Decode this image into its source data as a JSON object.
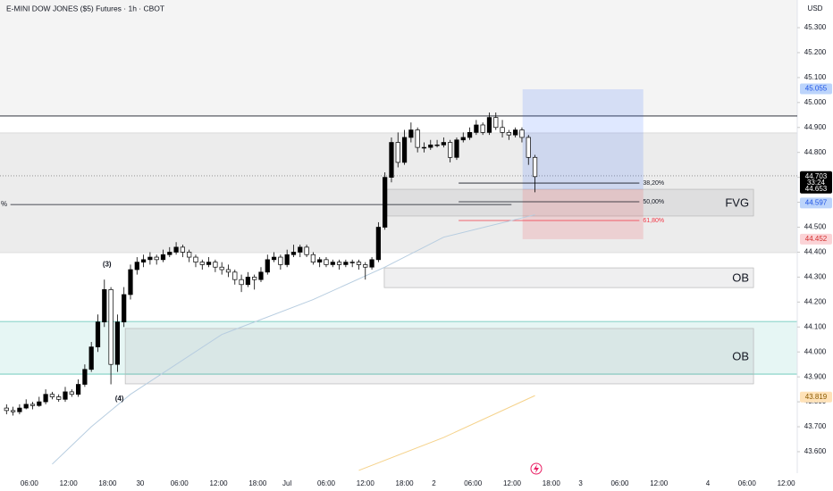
{
  "chart_data": {
    "type": "candlestick",
    "title": "E-MINI DOW JONES ($5) Futures · 1h · CBOT",
    "currency": "USD",
    "up_color": "#000000",
    "down_color": "#ffffff",
    "wick_color": "#000000",
    "x": [
      1,
      2,
      3,
      4,
      5,
      6,
      7,
      8,
      9,
      10,
      11,
      12,
      13,
      14,
      15,
      16,
      17,
      18,
      19,
      20,
      21,
      22,
      23,
      24,
      25,
      26,
      27,
      28,
      29,
      30,
      31,
      32,
      33,
      34,
      35,
      36,
      37,
      38,
      39,
      40,
      41,
      42,
      43,
      44,
      45,
      46,
      47,
      48,
      49,
      50,
      51,
      52,
      53,
      54,
      55,
      56,
      57,
      58,
      59,
      60,
      61,
      62,
      63,
      64,
      65,
      66,
      67,
      68,
      69,
      70,
      71,
      72,
      73,
      74,
      75,
      76,
      77,
      78,
      79,
      80,
      81,
      82
    ],
    "ohlc": [
      [
        43.775,
        43.79,
        43.75,
        43.765
      ],
      [
        43.765,
        43.78,
        43.745,
        43.76
      ],
      [
        43.76,
        43.79,
        43.75,
        43.775
      ],
      [
        43.775,
        43.81,
        43.77,
        43.79
      ],
      [
        43.79,
        43.8,
        43.77,
        43.785
      ],
      [
        43.785,
        43.82,
        43.78,
        43.8
      ],
      [
        43.8,
        43.85,
        43.79,
        43.83
      ],
      [
        43.83,
        43.84,
        43.81,
        43.82
      ],
      [
        43.82,
        43.83,
        43.8,
        43.81
      ],
      [
        43.81,
        43.86,
        43.8,
        43.84
      ],
      [
        43.84,
        43.85,
        43.82,
        43.83
      ],
      [
        43.83,
        43.89,
        43.82,
        43.87
      ],
      [
        43.87,
        43.95,
        43.86,
        43.93
      ],
      [
        43.93,
        44.04,
        43.92,
        44.02
      ],
      [
        44.02,
        44.15,
        44.0,
        44.12
      ],
      [
        44.12,
        44.29,
        44.1,
        44.25
      ],
      [
        44.25,
        44.26,
        43.87,
        43.95
      ],
      [
        43.95,
        44.15,
        43.92,
        44.12
      ],
      [
        44.12,
        44.26,
        44.1,
        44.23
      ],
      [
        44.23,
        44.35,
        44.21,
        44.33
      ],
      [
        44.33,
        44.38,
        44.31,
        44.36
      ],
      [
        44.36,
        44.39,
        44.34,
        44.37
      ],
      [
        44.37,
        44.4,
        44.35,
        44.38
      ],
      [
        44.38,
        44.39,
        44.35,
        44.37
      ],
      [
        44.37,
        44.41,
        44.36,
        44.39
      ],
      [
        44.39,
        44.42,
        44.38,
        44.4
      ],
      [
        44.4,
        44.44,
        44.39,
        44.42
      ],
      [
        44.42,
        44.43,
        44.38,
        44.4
      ],
      [
        44.4,
        44.41,
        44.36,
        44.38
      ],
      [
        44.38,
        44.39,
        44.34,
        44.36
      ],
      [
        44.36,
        44.37,
        44.33,
        44.35
      ],
      [
        44.35,
        44.38,
        44.34,
        44.36
      ],
      [
        44.36,
        44.37,
        44.32,
        44.34
      ],
      [
        44.34,
        44.36,
        44.31,
        44.33
      ],
      [
        44.33,
        44.35,
        44.3,
        44.32
      ],
      [
        44.32,
        44.33,
        44.27,
        44.29
      ],
      [
        44.29,
        44.31,
        44.24,
        44.27
      ],
      [
        44.27,
        44.32,
        44.26,
        44.3
      ],
      [
        44.3,
        44.31,
        44.25,
        44.29
      ],
      [
        44.29,
        44.34,
        44.28,
        44.32
      ],
      [
        44.32,
        44.39,
        44.31,
        44.37
      ],
      [
        44.37,
        44.4,
        44.36,
        44.38
      ],
      [
        44.38,
        44.39,
        44.33,
        44.35
      ],
      [
        44.35,
        44.41,
        44.34,
        44.39
      ],
      [
        44.39,
        44.43,
        44.38,
        44.4
      ],
      [
        44.4,
        44.43,
        44.38,
        44.42
      ],
      [
        44.42,
        44.43,
        44.38,
        44.39
      ],
      [
        44.39,
        44.4,
        44.35,
        44.36
      ],
      [
        44.36,
        44.38,
        44.34,
        44.37
      ],
      [
        44.37,
        44.38,
        44.34,
        44.35
      ],
      [
        44.35,
        44.37,
        44.34,
        44.36
      ],
      [
        44.36,
        44.37,
        44.33,
        44.35
      ],
      [
        44.35,
        44.37,
        44.34,
        44.36
      ],
      [
        44.36,
        44.37,
        44.34,
        44.36
      ],
      [
        44.36,
        44.37,
        44.33,
        44.35
      ],
      [
        44.35,
        44.36,
        44.29,
        44.34
      ],
      [
        44.34,
        44.38,
        44.33,
        44.37
      ],
      [
        44.37,
        44.52,
        44.36,
        44.5
      ],
      [
        44.5,
        44.72,
        44.49,
        44.7
      ],
      [
        44.7,
        44.86,
        44.68,
        44.84
      ],
      [
        44.84,
        44.88,
        44.74,
        44.76
      ],
      [
        44.76,
        44.89,
        44.75,
        44.86
      ],
      [
        44.86,
        44.92,
        44.84,
        44.89
      ],
      [
        44.89,
        44.9,
        44.8,
        44.82
      ],
      [
        44.82,
        44.84,
        44.8,
        44.82
      ],
      [
        44.82,
        44.85,
        44.81,
        44.83
      ],
      [
        44.83,
        44.85,
        44.82,
        44.83
      ],
      [
        44.83,
        44.86,
        44.82,
        44.84
      ],
      [
        44.84,
        44.85,
        44.76,
        44.78
      ],
      [
        44.78,
        44.86,
        44.77,
        44.85
      ],
      [
        44.85,
        44.88,
        44.84,
        44.86
      ],
      [
        44.86,
        44.9,
        44.85,
        44.88
      ],
      [
        44.88,
        44.93,
        44.87,
        44.91
      ],
      [
        44.91,
        44.92,
        44.87,
        44.88
      ],
      [
        44.88,
        44.96,
        44.87,
        44.94
      ],
      [
        44.94,
        44.96,
        44.89,
        44.9
      ],
      [
        44.9,
        44.93,
        44.86,
        44.88
      ],
      [
        44.88,
        44.89,
        44.85,
        44.87
      ],
      [
        44.87,
        44.9,
        44.86,
        44.89
      ],
      [
        44.89,
        44.9,
        44.84,
        44.86
      ],
      [
        44.86,
        44.87,
        44.75,
        44.78
      ],
      [
        44.78,
        44.79,
        44.64,
        44.703
      ]
    ],
    "xlim": [
      0,
      122.2
    ],
    "ylim": [
      43.514,
      45.411
    ],
    "xticks": [
      {
        "value": 4.5,
        "label": "06:00"
      },
      {
        "value": 10.5,
        "label": "12:00"
      },
      {
        "value": 16.5,
        "label": "18:00"
      },
      {
        "value": 21.5,
        "label": "30"
      },
      {
        "value": 27.5,
        "label": "06:00"
      },
      {
        "value": 33.5,
        "label": "12:00"
      },
      {
        "value": 39.5,
        "label": "18:00"
      },
      {
        "value": 44,
        "label": "Jul"
      },
      {
        "value": 50,
        "label": "06:00"
      },
      {
        "value": 56,
        "label": "12:00"
      },
      {
        "value": 62,
        "label": "18:00"
      },
      {
        "value": 66.5,
        "label": "2"
      },
      {
        "value": 72.5,
        "label": "06:00"
      },
      {
        "value": 78.5,
        "label": "12:00"
      },
      {
        "value": 84.5,
        "label": "18:00"
      },
      {
        "value": 89,
        "label": "3"
      },
      {
        "value": 95,
        "label": "06:00"
      },
      {
        "value": 101,
        "label": "12:00"
      },
      {
        "value": 108.5,
        "label": "4"
      },
      {
        "value": 114.5,
        "label": "06:00"
      },
      {
        "value": 120.5,
        "label": "12:00"
      }
    ],
    "yticks": [
      {
        "value": 43.6,
        "label": "43.600"
      },
      {
        "value": 43.7,
        "label": "43.700"
      },
      {
        "value": 43.8,
        "label": "43.800"
      },
      {
        "value": 43.9,
        "label": "43.900"
      },
      {
        "value": 44.0,
        "label": "44.000"
      },
      {
        "value": 44.1,
        "label": "44.100"
      },
      {
        "value": 44.2,
        "label": "44.200"
      },
      {
        "value": 44.3,
        "label": "44.300"
      },
      {
        "value": 44.4,
        "label": "44.400"
      },
      {
        "value": 44.5,
        "label": "44.500"
      },
      {
        "value": 44.6,
        "label": "44.600"
      },
      {
        "value": 44.7,
        "label": "44.700"
      },
      {
        "value": 44.8,
        "label": "44.800"
      },
      {
        "value": 44.9,
        "label": "44.900"
      },
      {
        "value": 45.0,
        "label": "45.000"
      },
      {
        "value": 45.1,
        "label": "45.100"
      },
      {
        "value": 45.2,
        "label": "45.200"
      },
      {
        "value": 45.3,
        "label": "45.300"
      }
    ],
    "lines": [
      {
        "color": "#b7cde0",
        "x": [
          8,
          14,
          20,
          34,
          48,
          59,
          68,
          82
        ],
        "values": [
          43.55,
          43.7,
          43.83,
          44.07,
          44.21,
          44.34,
          44.46,
          44.55
        ]
      },
      {
        "color": "#f5d28a",
        "x": [
          55,
          68,
          82
        ],
        "values": [
          43.525,
          43.657,
          43.825
        ]
      }
    ],
    "zones": [
      {
        "range": [
          44.946,
          45.411
        ],
        "color": "#f4f4f4",
        "border": "none"
      },
      {
        "range": [
          44.398,
          44.878
        ],
        "color": "#ececec",
        "border": "#d6d6d6"
      },
      {
        "range": [
          43.911,
          44.122
        ],
        "color": "#e6f6f4",
        "border": "#5fc4b4"
      }
    ],
    "levels": [
      {
        "price": 44.946,
        "color": "#131722",
        "dash": "none"
      },
      {
        "price": 44.706,
        "color": "#888888",
        "dash": "1,2"
      }
    ],
    "boxes": [
      {
        "x": [
          59.3,
          115.5
        ],
        "range": [
          44.545,
          44.652
        ],
        "label": "FVG"
      },
      {
        "x": [
          58.9,
          115.5
        ],
        "range": [
          44.258,
          44.337
        ],
        "label": "OB"
      },
      {
        "x": [
          19.2,
          115.5
        ],
        "range": [
          43.872,
          44.094
        ],
        "label": "OB"
      }
    ],
    "ray": {
      "x": [
        1.6,
        78.4
      ],
      "price": 44.591,
      "label": "%"
    },
    "position": {
      "x": [
        80.1,
        98.6
      ],
      "target": 45.053,
      "entry": 44.652,
      "stop": 44.452
    },
    "fib": {
      "x": [
        70.3,
        98
      ],
      "levels": [
        {
          "price": 44.677,
          "label": "38,20%",
          "color": "#131722"
        },
        {
          "price": 44.602,
          "label": "50,00%",
          "color": "#131722"
        },
        {
          "price": 44.527,
          "label": "61,80%",
          "color": "#f23645"
        }
      ]
    },
    "wave_labels": [
      {
        "label": "(3)",
        "x": 16.4,
        "price": 44.35
      },
      {
        "label": "(4)",
        "x": 18.3,
        "price": 43.811
      }
    ],
    "price_labels": [
      {
        "value": 45.055,
        "color": "#bcd4fb",
        "text_color": "#1e53e5"
      },
      {
        "value": 44.597,
        "color": "#bcd4fb",
        "text_color": "#1e53e5"
      },
      {
        "value": 44.452,
        "color": "#fbd3d6",
        "text_color": "#d32f2f"
      },
      {
        "value": 43.819,
        "color": "#ffe2b8",
        "text_color": "#8a5a00"
      }
    ],
    "last_price": {
      "value": 44.703,
      "countdown": "33:24",
      "next": 44.653,
      "color": "#000000",
      "text_color": "#ffffff"
    }
  }
}
